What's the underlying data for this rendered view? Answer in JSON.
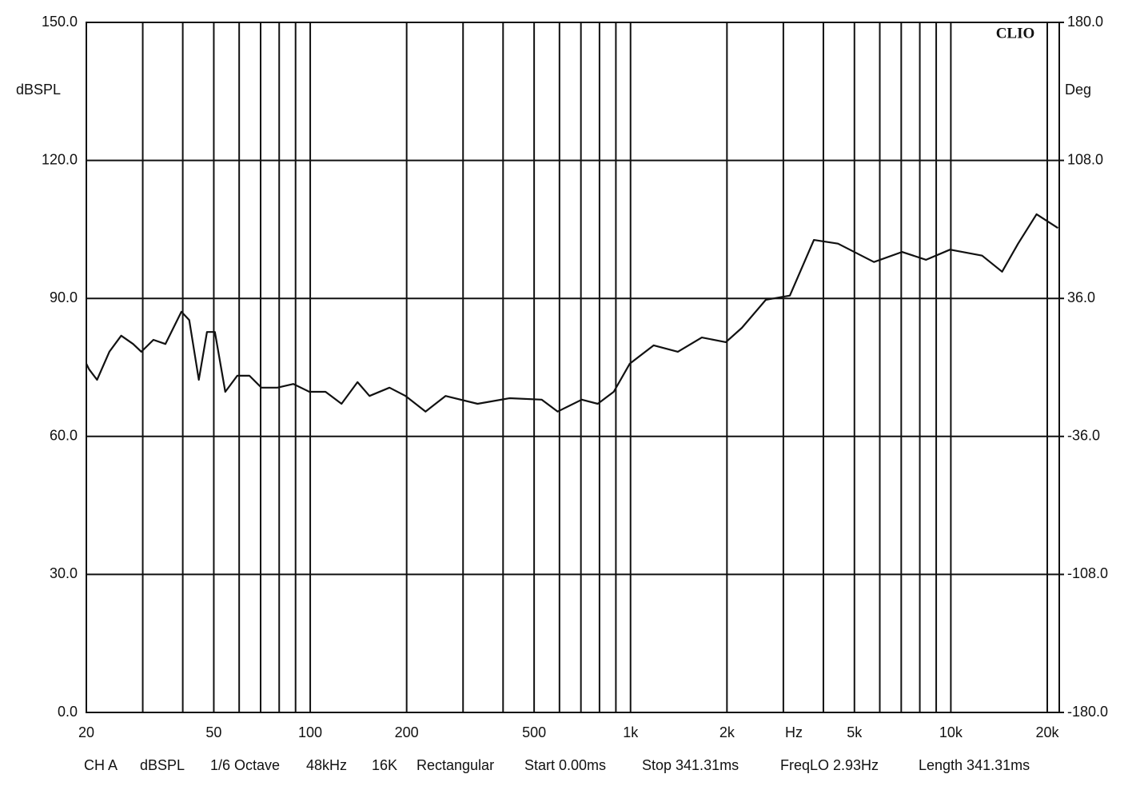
{
  "chart_data": {
    "type": "line",
    "badge": "CLIO",
    "y_label": "dBSPL",
    "y2_label": "Deg",
    "x_label": "Hz",
    "x_scale": "log",
    "grid": true,
    "color": "#111111",
    "xlim": [
      20,
      21800
    ],
    "ylim": [
      0,
      150
    ],
    "y2lim": [
      -180,
      180
    ],
    "xticks": [
      20,
      50,
      100,
      200,
      500,
      {
        "value": 1000,
        "label": "1k"
      },
      {
        "value": 2000,
        "label": "2k"
      },
      {
        "value": 5000,
        "label": "5k"
      },
      {
        "value": 10000,
        "label": "10k"
      },
      {
        "value": 20000,
        "label": "20k"
      }
    ],
    "minor_xticks": [
      30,
      40,
      60,
      70,
      80,
      90,
      300,
      400,
      600,
      700,
      800,
      900,
      3000,
      4000,
      6000,
      7000,
      8000,
      9000
    ],
    "yticks": [
      {
        "value": 0,
        "label": "0.0"
      },
      {
        "value": 30,
        "label": "30.0"
      },
      {
        "value": 60,
        "label": "60.0"
      },
      {
        "value": 90,
        "label": "90.0"
      },
      {
        "value": 120,
        "label": "120.0"
      },
      {
        "value": 150,
        "label": "150.0"
      }
    ],
    "y2ticks": [
      {
        "value": -180,
        "label": "-180.0"
      },
      {
        "value": -108,
        "label": "-108.0"
      },
      {
        "value": -36,
        "label": "-36.0"
      },
      {
        "value": 36,
        "label": "36.0"
      },
      {
        "value": 108,
        "label": "108.0"
      },
      {
        "value": 180,
        "label": "180.0"
      }
    ],
    "x": [
      20,
      20.4,
      21.6,
      23.6,
      25.7,
      28.0,
      29.7,
      32.4,
      35.3,
      39.6,
      41.9,
      44.9,
      47.6,
      50.4,
      54.3,
      59.2,
      64.6,
      70.4,
      79.0,
      88.6,
      99.4,
      111.6,
      125.2,
      140.5,
      153.1,
      176.8,
      198.4,
      229.1,
      264.5,
      333,
      419.3,
      527.8,
      592.2,
      704,
      789.9,
      886.2,
      994.3,
      1181,
      1405,
      1669,
      1984,
      2226,
      2646,
      3144,
      3737,
      4442,
      5754,
      7040,
      8367,
      9943,
      12517,
      14454,
      16218,
      18513,
      21600
    ],
    "values": [
      75.8,
      74.6,
      72.3,
      78.4,
      81.9,
      80.1,
      78.4,
      81.0,
      80.1,
      87.1,
      85.3,
      72.3,
      82.7,
      82.7,
      69.7,
      73.2,
      73.2,
      70.6,
      70.6,
      71.4,
      69.7,
      69.7,
      67.1,
      71.8,
      68.8,
      70.6,
      68.8,
      65.4,
      68.8,
      67.1,
      68.3,
      68.0,
      65.4,
      68.0,
      67.1,
      69.7,
      75.8,
      79.8,
      78.4,
      81.5,
      80.5,
      83.6,
      89.7,
      90.6,
      102.7,
      101.9,
      97.9,
      100.1,
      98.4,
      100.6,
      99.3,
      95.8,
      101.9,
      108.3,
      105.3
    ],
    "footer": [
      "CH A",
      "dBSPL",
      "1/6 Octave",
      "48kHz",
      "16K",
      "Rectangular",
      "Start 0.00ms",
      "Stop 341.31ms",
      "FreqLO 2.93Hz",
      "Length 341.31ms"
    ]
  }
}
